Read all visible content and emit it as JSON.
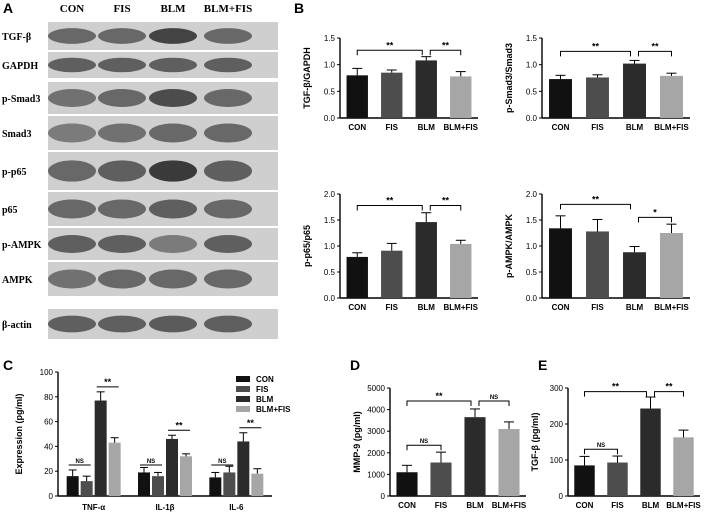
{
  "figure": {
    "panel_labels": [
      "A",
      "B",
      "C",
      "D",
      "E"
    ]
  },
  "western_blot": {
    "lane_labels": [
      "CON",
      "FIS",
      "BLM",
      "BLM+FIS"
    ],
    "proteins": [
      "TGF-β",
      "GAPDH",
      "p-Smad3",
      "Smad3",
      "p-p65",
      "p65",
      "p-AMPK",
      "AMPK",
      "β-actin"
    ]
  },
  "colors": {
    "CON": "#111111",
    "FIS": "#4d4d4d",
    "BLM": "#2b2b2b",
    "BLM+FIS": "#a6a6a6"
  },
  "chart_data": [
    {
      "panel": "B",
      "type": "bar",
      "categories": [
        "CON",
        "FIS",
        "BLM",
        "BLM+FIS"
      ],
      "values": [
        0.8,
        0.85,
        1.08,
        0.78
      ],
      "errors": [
        0.13,
        0.05,
        0.07,
        0.09
      ],
      "ylabel": "TGF-β/GAPDH",
      "yticks": [
        "0.0",
        "0.5",
        "1.0",
        "1.5"
      ],
      "ylim": [
        0,
        1.5
      ],
      "significance": [
        {
          "from": 0,
          "to": 2,
          "label": "**",
          "y": 1.27
        },
        {
          "from": 2,
          "to": 3,
          "label": "**",
          "y": 1.27
        }
      ]
    },
    {
      "panel": "B",
      "type": "bar",
      "categories": [
        "CON",
        "FIS",
        "BLM",
        "BLM+FIS"
      ],
      "values": [
        0.73,
        0.76,
        1.02,
        0.79
      ],
      "errors": [
        0.07,
        0.05,
        0.06,
        0.05
      ],
      "ylabel": "p-Smad3/Smad3",
      "yticks": [
        "0.0",
        "0.5",
        "1.0",
        "1.5"
      ],
      "ylim": [
        0,
        1.5
      ],
      "significance": [
        {
          "from": 0,
          "to": 2,
          "label": "**",
          "y": 1.25
        },
        {
          "from": 2,
          "to": 3,
          "label": "**",
          "y": 1.25
        }
      ]
    },
    {
      "panel": "B",
      "type": "bar",
      "categories": [
        "CON",
        "FIS",
        "BLM",
        "BLM+FIS"
      ],
      "values": [
        0.79,
        0.91,
        1.46,
        1.04
      ],
      "errors": [
        0.08,
        0.14,
        0.18,
        0.07
      ],
      "ylabel": "p-p65/p65",
      "yticks": [
        "0.0",
        "0.5",
        "1.0",
        "1.5",
        "2.0"
      ],
      "ylim": [
        0,
        2.0
      ],
      "significance": [
        {
          "from": 0,
          "to": 2,
          "label": "**",
          "y": 1.78
        },
        {
          "from": 2,
          "to": 3,
          "label": "**",
          "y": 1.78
        }
      ]
    },
    {
      "panel": "B",
      "type": "bar",
      "categories": [
        "CON",
        "FIS",
        "BLM",
        "BLM+FIS"
      ],
      "values": [
        1.34,
        1.28,
        0.88,
        1.25
      ],
      "errors": [
        0.24,
        0.23,
        0.11,
        0.17
      ],
      "ylabel": "p-AMPK/AMPK",
      "yticks": [
        "0.0",
        "0.5",
        "1.0",
        "1.5",
        "2.0"
      ],
      "ylim": [
        0,
        2.0
      ],
      "significance": [
        {
          "from": 0,
          "to": 2,
          "label": "**",
          "y": 1.8
        },
        {
          "from": 2,
          "to": 3,
          "label": "*",
          "y": 1.55
        }
      ]
    },
    {
      "panel": "C",
      "type": "bar",
      "categories": [
        "TNF-α",
        "IL-1β",
        "IL-6"
      ],
      "series": [
        {
          "name": "CON",
          "values": [
            16,
            19,
            15
          ],
          "errors": [
            5,
            4,
            4
          ]
        },
        {
          "name": "FIS",
          "values": [
            12,
            16,
            19
          ],
          "errors": [
            4,
            3,
            5
          ]
        },
        {
          "name": "BLM",
          "values": [
            77,
            46,
            44
          ],
          "errors": [
            7,
            3,
            7
          ]
        },
        {
          "name": "BLM+FIS",
          "values": [
            43,
            32,
            18
          ],
          "errors": [
            4,
            2,
            4
          ]
        }
      ],
      "ylabel": "Expression (pg/ml)",
      "yticks": [
        "0",
        "20",
        "40",
        "60",
        "80",
        "100"
      ],
      "ylim": [
        0,
        100
      ],
      "legend": "top-right",
      "significance_groups": [
        {
          "group": 0,
          "pair": [
            0,
            1
          ],
          "label": "NS",
          "y": 25
        },
        {
          "group": 0,
          "pair": [
            2,
            3
          ],
          "label": "**",
          "y": 88
        },
        {
          "group": 1,
          "pair": [
            0,
            1
          ],
          "label": "NS",
          "y": 25
        },
        {
          "group": 1,
          "pair": [
            2,
            3
          ],
          "label": "**",
          "y": 53
        },
        {
          "group": 2,
          "pair": [
            0,
            1
          ],
          "label": "NS",
          "y": 25
        },
        {
          "group": 2,
          "pair": [
            2,
            3
          ],
          "label": "**",
          "y": 55
        }
      ]
    },
    {
      "panel": "D",
      "type": "bar",
      "categories": [
        "CON",
        "FIS",
        "BLM",
        "BLM+FIS"
      ],
      "values": [
        1100,
        1550,
        3650,
        3100
      ],
      "errors": [
        320,
        480,
        380,
        330
      ],
      "ylabel": "MMP-9 (pg/ml)",
      "yticks": [
        "0",
        "1000",
        "2000",
        "3000",
        "4000",
        "5000"
      ],
      "ylim": [
        0,
        5000
      ],
      "significance": [
        {
          "from": 0,
          "to": 1,
          "label": "NS",
          "y": 2350
        },
        {
          "from": 0,
          "to": 2,
          "label": "**",
          "y": 4400
        },
        {
          "from": 2,
          "to": 3,
          "label": "NS",
          "y": 4400
        }
      ]
    },
    {
      "panel": "E",
      "type": "bar",
      "categories": [
        "CON",
        "FIS",
        "BLM",
        "BLM+FIS"
      ],
      "values": [
        85,
        93,
        243,
        163
      ],
      "errors": [
        25,
        18,
        32,
        20
      ],
      "ylabel": "TGF-β (pg/ml)",
      "yticks": [
        "0",
        "100",
        "200",
        "300"
      ],
      "ylim": [
        0,
        300
      ],
      "significance": [
        {
          "from": 0,
          "to": 1,
          "label": "NS",
          "y": 130
        },
        {
          "from": 0,
          "to": 2,
          "label": "**",
          "y": 290
        },
        {
          "from": 2,
          "to": 3,
          "label": "**",
          "y": 290
        }
      ]
    }
  ]
}
